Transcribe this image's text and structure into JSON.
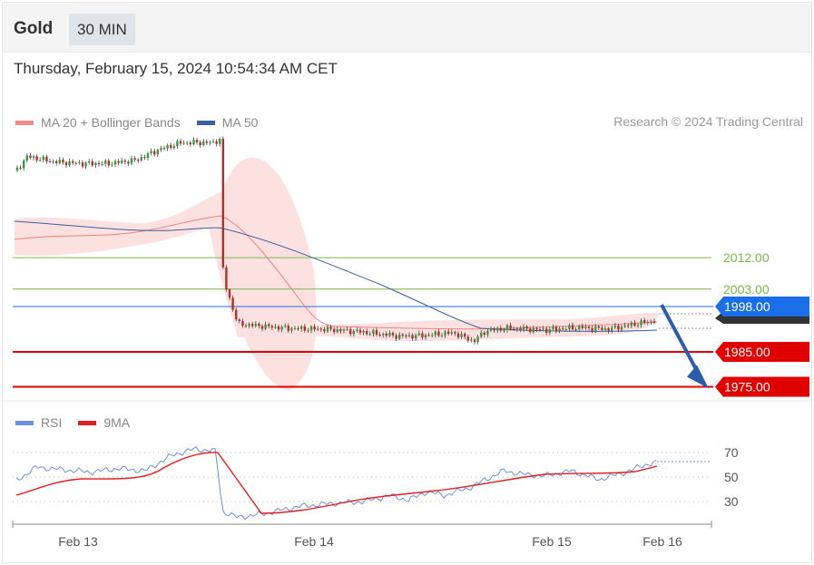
{
  "header": {
    "symbol": "Gold",
    "timeframe": "30 MIN"
  },
  "timestamp": "Thursday, February 15, 2024 10:54:34 AM CET",
  "legend_main": [
    {
      "label": "MA 20 + Bollinger Bands",
      "color": "#f28b8b"
    },
    {
      "label": "MA 50",
      "color": "#3a5fa0"
    }
  ],
  "legend_rsi": [
    {
      "label": "RSI",
      "color": "#6d8fe0"
    },
    {
      "label": "9MA",
      "color": "#e02020"
    }
  ],
  "copyright": "Research © 2024 Trading Central",
  "colors": {
    "support": "#e00000",
    "resistance": "#7ab648",
    "pivot": "#1a6fe8",
    "up": "#3a9a3a",
    "down": "#b0302a",
    "arrow": "#2c5ea8"
  },
  "chart_data": {
    "type": "candlestick",
    "x_ticks": [
      "Feb 13",
      "Feb 14",
      "Feb 15",
      "Feb 16"
    ],
    "price_levels": [
      {
        "label": "2012.00",
        "value": 2012,
        "kind": "resistance"
      },
      {
        "label": "2003.00",
        "value": 2003,
        "kind": "resistance"
      },
      {
        "label": "1998.00",
        "value": 1998,
        "kind": "pivot"
      },
      {
        "label": "1985.00",
        "value": 1985,
        "kind": "support"
      },
      {
        "label": "1975.00",
        "value": 1975,
        "kind": "support"
      }
    ],
    "ylim": [
      1969,
      2045
    ],
    "forecast": {
      "from": 1998.5,
      "to": 1975
    },
    "rsi": {
      "levels": [
        70,
        50,
        30
      ],
      "ylim": [
        12,
        80
      ]
    }
  }
}
